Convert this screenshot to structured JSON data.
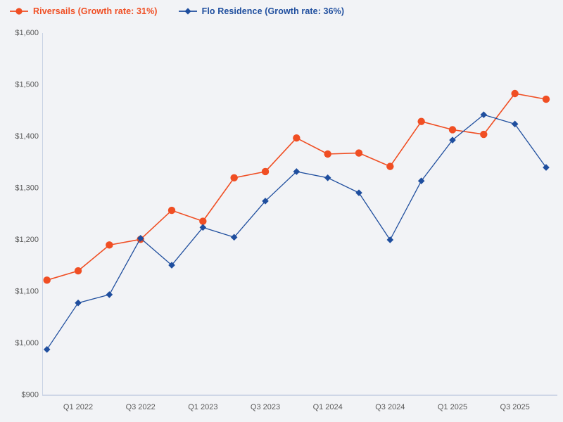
{
  "page": {
    "background_color": "#f2f3f6"
  },
  "legend": {
    "items": [
      {
        "name": "Riversails",
        "label": "Riversails (Growth rate: 31%)",
        "color": "#f04e23",
        "marker": "circle"
      },
      {
        "name": "Flo Residence",
        "label": "Flo Residence (Growth rate: 36%)",
        "color": "#1f4e9e",
        "marker": "diamond"
      }
    ]
  },
  "chart_data": {
    "type": "line",
    "title": "",
    "xlabel": "",
    "ylabel": "",
    "categories": [
      "Q4 2021",
      "Q1 2022",
      "Q2 2022",
      "Q3 2022",
      "Q4 2022",
      "Q1 2023",
      "Q2 2023",
      "Q3 2023",
      "Q4 2023",
      "Q1 2024",
      "Q2 2024",
      "Q3 2024",
      "Q4 2024",
      "Q1 2025",
      "Q2 2025",
      "Q3 2025",
      "Q4 2025"
    ],
    "x_tick_labels": [
      "Q1 2022",
      "Q3 2022",
      "Q1 2023",
      "Q3 2023",
      "Q1 2024",
      "Q3 2024",
      "Q1 2025",
      "Q3 2025"
    ],
    "x_tick_every_other_starting_index": 1,
    "series": [
      {
        "name": "Riversails",
        "growth_rate": "31%",
        "color": "#f04e23",
        "marker": "circle",
        "values": [
          1122,
          1140,
          1190,
          1201,
          1257,
          1236,
          1320,
          1332,
          1397,
          1366,
          1368,
          1342,
          1429,
          1413,
          1404,
          1483,
          1472
        ]
      },
      {
        "name": "Flo Residence",
        "growth_rate": "36%",
        "color": "#1f4e9e",
        "marker": "diamond",
        "values": [
          988,
          1078,
          1094,
          1203,
          1151,
          1224,
          1205,
          1275,
          1332,
          1320,
          1291,
          1200,
          1314,
          1393,
          1442,
          1424,
          1340
        ]
      }
    ],
    "ylim": [
      900,
      1600
    ],
    "y_tick_step": 100,
    "y_ticks": [
      "$900",
      "$1,000",
      "$1,100",
      "$1,200",
      "$1,300",
      "$1,400",
      "$1,500",
      "$1,600"
    ],
    "currency_prefix": "$",
    "grid": false,
    "legend_position": "top-left",
    "axis_color": "#c9d2e4",
    "tick_label_color": "#595959"
  }
}
